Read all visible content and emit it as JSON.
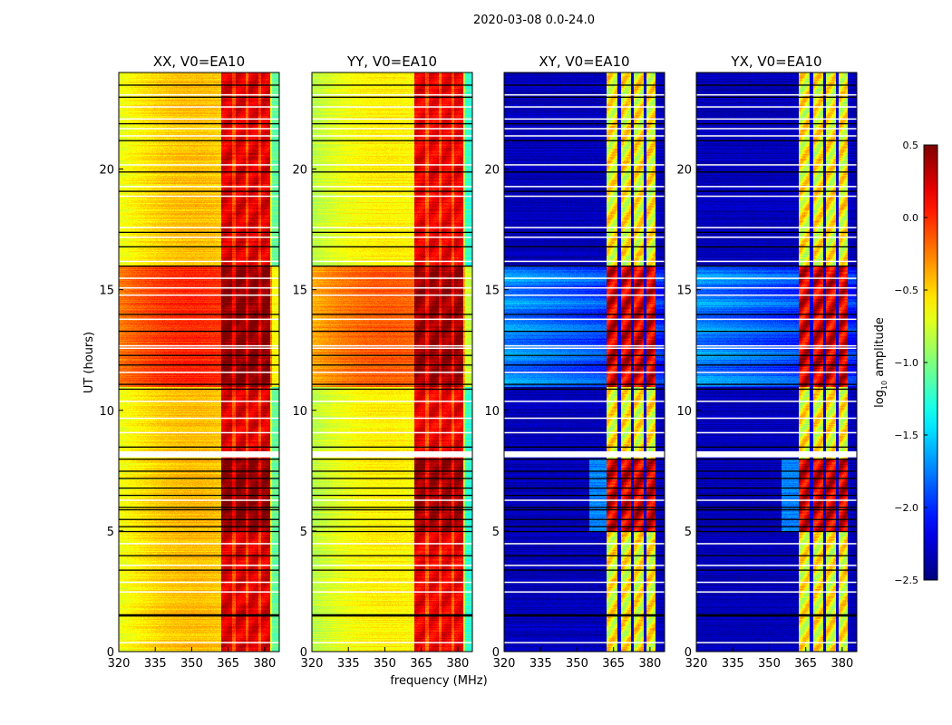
{
  "chart_data": {
    "type": "heatmap",
    "suptitle": "2020-03-08 0.0-24.0",
    "xlabel": "frequency (MHz)",
    "ylabel": "UT (hours)",
    "xlim": [
      320,
      386
    ],
    "ylim": [
      0,
      24
    ],
    "xticks": [
      "320",
      "335",
      "350",
      "365",
      "380"
    ],
    "xtick_values": [
      320,
      335,
      350,
      365,
      380
    ],
    "yticks": [
      "0",
      "5",
      "10",
      "15",
      "20"
    ],
    "ytick_values": [
      0,
      5,
      10,
      15,
      20
    ],
    "panels": [
      {
        "title": "XX, V0=EA10",
        "kind": "parallel",
        "base": -0.65,
        "band": 0.15,
        "active_boost": 0.45
      },
      {
        "title": "YY, V0=EA10",
        "kind": "parallel",
        "base": -0.8,
        "band": 0.1,
        "active_boost": 0.45
      },
      {
        "title": "XY, V0=EA10",
        "kind": "cross",
        "base": -2.4,
        "band": -0.7,
        "active_boost": 0.9
      },
      {
        "title": "YX, V0=EA10",
        "kind": "cross",
        "base": -2.4,
        "band": -0.7,
        "active_boost": 0.9
      }
    ],
    "band_mhz": [
      362,
      382
    ],
    "band_gaps_mhz": [
      367.2,
      372.5,
      377.8
    ],
    "active_hours": [
      [
        11,
        16
      ],
      [
        5,
        8
      ]
    ],
    "flagged_hours_white": [
      0.4,
      2.5,
      2.9,
      3.6,
      4.5,
      6.3,
      8.2,
      8.3,
      9.1,
      9.7,
      10.4,
      11.6,
      12.6,
      12.7,
      13.8,
      14.8,
      15.1,
      15.5,
      16.2,
      17.2,
      17.6,
      18.9,
      19.3,
      20.2,
      21.4,
      21.7,
      22.1,
      22.6,
      23.1
    ],
    "flagged_hours_black": [
      1.5,
      1.55,
      3.4,
      4.0,
      5.0,
      5.2,
      5.5,
      5.9,
      6.0,
      6.5,
      6.8,
      7.2,
      7.5,
      8.0,
      8.5,
      10.9,
      11.1,
      11.9,
      12.3,
      13.3,
      14.0,
      16.0,
      16.8,
      17.4,
      19.1,
      19.9,
      21.2,
      21.9,
      23.0,
      23.5
    ],
    "colorbar": {
      "label": "log10 amplitude",
      "label_main": "log",
      "label_sub": "10",
      "label_rest": " amplitude",
      "range": [
        -2.5,
        0.5
      ],
      "ticks": [
        "0.5",
        "0.0",
        "−0.5",
        "−1.0",
        "−1.5",
        "−2.0",
        "−2.5"
      ],
      "tick_values": [
        0.5,
        0.0,
        -0.5,
        -1.0,
        -1.5,
        -2.0,
        -2.5
      ],
      "colormap": "jet"
    }
  }
}
